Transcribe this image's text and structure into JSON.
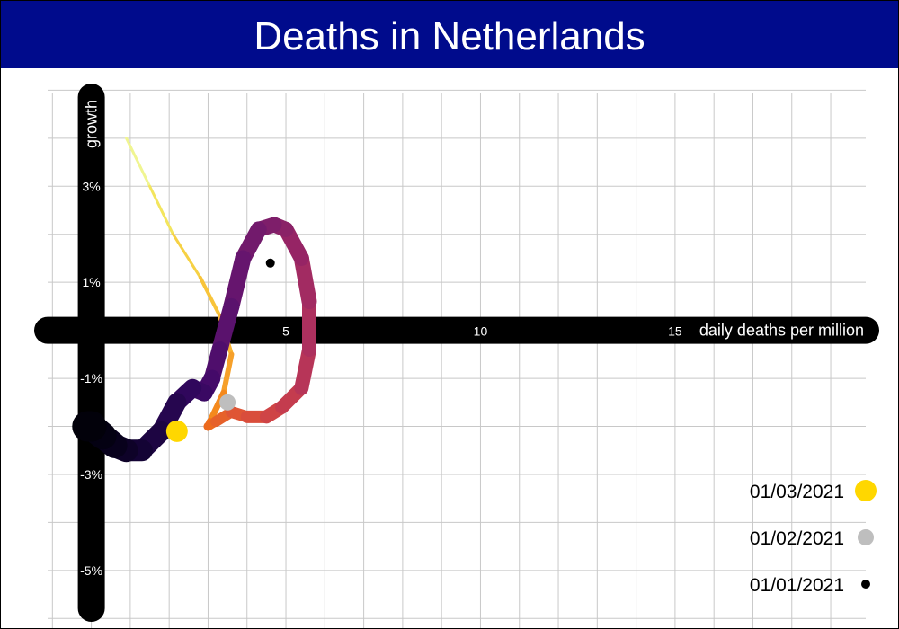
{
  "chart_data": {
    "type": "line",
    "title": "Deaths in Netherlands",
    "xlabel": "daily deaths per million",
    "ylabel": "growth",
    "xlim": [
      -1.4,
      19.9
    ],
    "ylim": [
      -6.2,
      5.4
    ],
    "x_ticks": [
      5,
      10,
      15
    ],
    "x_tick_labels": [
      "5",
      "10",
      "15"
    ],
    "y_ticks": [
      3,
      1,
      -1,
      -3,
      -5
    ],
    "y_tick_labels": [
      "3%",
      "1%",
      "-1%",
      "-3%",
      "-5%"
    ],
    "grid": true,
    "legend_position": "bottom-right",
    "series": [
      {
        "x": [
          0.9,
          1.5,
          2.1,
          2.8,
          3.3,
          3.6,
          3.4,
          3.05,
          3.0,
          3.2,
          3.6,
          4.0,
          4.5,
          4.9,
          5.4,
          5.6,
          5.6,
          5.4,
          5.0,
          4.7,
          4.3,
          3.9,
          3.6,
          3.3,
          3.1,
          2.9,
          2.6,
          2.2,
          1.8,
          1.3,
          0.9,
          0.6,
          0.3,
          0.0,
          -0.1
        ],
        "y": [
          4.0,
          3.0,
          2.0,
          1.1,
          0.3,
          -0.5,
          -1.3,
          -1.9,
          -2.0,
          -1.9,
          -1.7,
          -1.8,
          -1.8,
          -1.6,
          -1.2,
          -0.4,
          0.6,
          1.5,
          2.1,
          2.2,
          2.1,
          1.5,
          0.5,
          -0.4,
          -1.0,
          -1.3,
          -1.2,
          -1.5,
          -2.1,
          -2.5,
          -2.5,
          -2.4,
          -2.2,
          -2.0,
          -2.0
        ],
        "colors": [
          "#f0f591",
          "#f3e55d",
          "#f6d144",
          "#f8c43a",
          "#f9b532",
          "#f6a02a",
          "#f4891d",
          "#f07118",
          "#ec6a1e",
          "#e6612a",
          "#df5535",
          "#d94d3b",
          "#cf4446",
          "#c43c4e",
          "#b73558",
          "#ad305e",
          "#a22b62",
          "#962465",
          "#8a2267",
          "#7e1e6a",
          "#721a6c",
          "#66156e",
          "#5a126d",
          "#4f0e6c",
          "#440a69",
          "#3a0963",
          "#30075c",
          "#26064f",
          "#1d0542",
          "#140335",
          "#0e0228",
          "#08011c",
          "#040112",
          "#02010a",
          "#000004"
        ],
        "widths": [
          3,
          3,
          3,
          4,
          5,
          6,
          7,
          8,
          10,
          12,
          13,
          14,
          15,
          15,
          16,
          16,
          17,
          17,
          17,
          17,
          18,
          18,
          18,
          18,
          19,
          19,
          20,
          21,
          22,
          24,
          26,
          28,
          30,
          34,
          38
        ]
      }
    ],
    "markers": [
      {
        "date": "01/03/2021",
        "x": 2.2,
        "y": -2.1,
        "color": "#ffd700"
      },
      {
        "date": "01/02/2021",
        "x": 3.5,
        "y": -1.5,
        "color": "#bebebe"
      },
      {
        "date": "01/01/2021",
        "x": 4.6,
        "y": 1.4,
        "color": "#000000"
      }
    ],
    "legend": [
      {
        "label": "01/03/2021",
        "color": "#ffd700",
        "size": 12
      },
      {
        "label": "01/02/2021",
        "color": "#bebebe",
        "size": 9
      },
      {
        "label": "01/01/2021",
        "color": "#000000",
        "size": 5
      }
    ],
    "colors": {
      "title_bg": "#000b8c",
      "title_text": "#ffffff",
      "axis_bar": "#000000",
      "grid": "#c8c8c8",
      "axis_text": "#ffffff",
      "legend_text": "#000000"
    }
  }
}
